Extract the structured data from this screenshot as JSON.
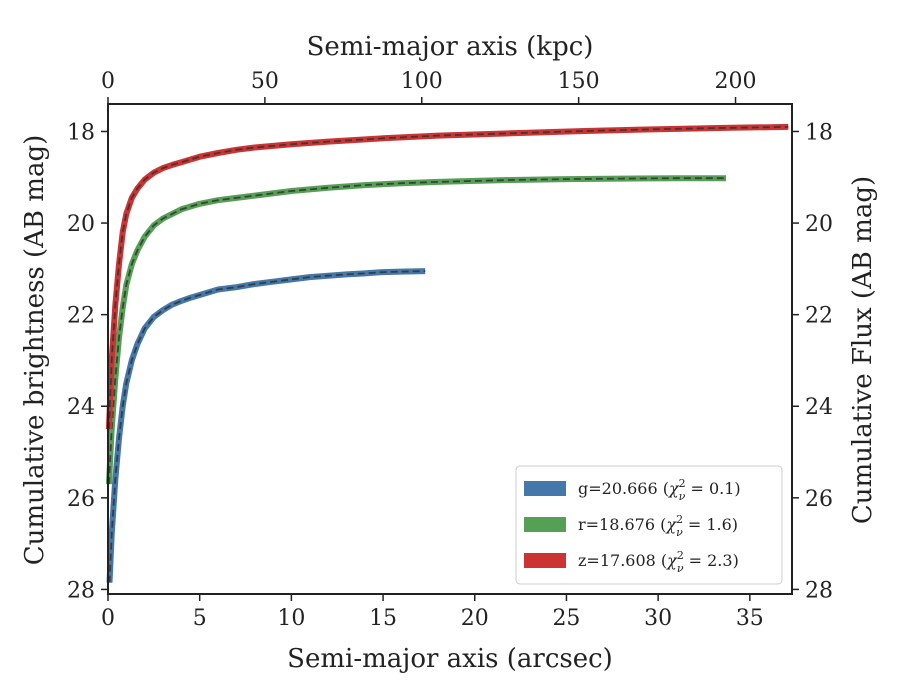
{
  "chart_data": {
    "type": "line",
    "xlabel": "Semi-major axis (arcsec)",
    "ylabel": "Cumulative brightness (AB mag)",
    "x2label": "Semi-major axis (kpc)",
    "y2label": "Cumulative Flux (AB mag)",
    "xlim": [
      0,
      37.3
    ],
    "ylim": [
      28.1,
      17.4
    ],
    "x2lim": [
      0,
      218
    ],
    "y_inverted": true,
    "xticks": [
      0,
      5,
      10,
      15,
      20,
      25,
      30,
      35
    ],
    "yticks": [
      18,
      20,
      22,
      24,
      26,
      28
    ],
    "x2ticks": [
      0,
      50,
      100,
      150,
      200
    ],
    "legend_position": "lower-right",
    "grid": false,
    "series": [
      {
        "name": "g=20.666 (χ²ν = 0.1)",
        "legend_prefix": "g=20.666 (",
        "legend_chi": "χ",
        "legend_sup": "2",
        "legend_sub": "ν",
        "legend_suffix": " = 0.1)",
        "color": "#4477aa",
        "x": [
          0.08,
          0.2,
          0.4,
          0.6,
          0.8,
          1.0,
          1.3,
          1.6,
          2.0,
          2.5,
          3.0,
          3.5,
          4.0,
          4.5,
          5.0,
          6.0,
          7.0,
          8.0,
          9.0,
          10.0,
          11.0,
          12.0,
          13.0,
          14.0,
          15.0,
          16.0,
          17.3
        ],
        "y": [
          27.85,
          26.8,
          25.6,
          24.7,
          24.0,
          23.5,
          23.0,
          22.65,
          22.3,
          22.05,
          21.9,
          21.78,
          21.7,
          21.63,
          21.57,
          21.45,
          21.4,
          21.33,
          21.28,
          21.23,
          21.18,
          21.15,
          21.12,
          21.1,
          21.07,
          21.06,
          21.05
        ]
      },
      {
        "name": "r=18.676 (χ²ν = 1.6)",
        "legend_prefix": "r=18.676 (",
        "legend_chi": "χ",
        "legend_sup": "2",
        "legend_sub": "ν",
        "legend_suffix": " = 1.6)",
        "color": "#55a055",
        "x": [
          0.05,
          0.2,
          0.4,
          0.6,
          0.8,
          1.0,
          1.3,
          1.6,
          2.0,
          2.5,
          3.0,
          3.5,
          4.0,
          5.0,
          6.0,
          7.0,
          8.0,
          10.0,
          12.0,
          14.0,
          16.0,
          18.0,
          20.0,
          22.0,
          25.0,
          28.0,
          31.0,
          33.7
        ],
        "y": [
          25.7,
          24.5,
          23.4,
          22.5,
          21.85,
          21.35,
          20.9,
          20.6,
          20.3,
          20.05,
          19.9,
          19.8,
          19.7,
          19.58,
          19.5,
          19.45,
          19.4,
          19.3,
          19.23,
          19.17,
          19.13,
          19.1,
          19.08,
          19.06,
          19.04,
          19.03,
          19.02,
          19.02
        ]
      },
      {
        "name": "z=17.608 (χ²ν = 2.3)",
        "legend_prefix": "z=17.608 (",
        "legend_chi": "χ",
        "legend_sup": "2",
        "legend_sub": "ν",
        "legend_suffix": " = 2.3)",
        "color": "#cc3333",
        "x": [
          0.05,
          0.2,
          0.4,
          0.6,
          0.8,
          1.0,
          1.3,
          1.6,
          2.0,
          2.5,
          3.0,
          3.5,
          4.0,
          5.0,
          6.0,
          7.0,
          8.0,
          10.0,
          12.0,
          15.0,
          18.0,
          22.0,
          26.0,
          30.0,
          34.0,
          37.1
        ],
        "y": [
          24.5,
          23.0,
          21.8,
          20.9,
          20.2,
          19.8,
          19.45,
          19.25,
          19.05,
          18.9,
          18.8,
          18.73,
          18.67,
          18.55,
          18.47,
          18.4,
          18.35,
          18.28,
          18.22,
          18.15,
          18.09,
          18.04,
          17.99,
          17.95,
          17.92,
          17.9
        ]
      }
    ]
  }
}
